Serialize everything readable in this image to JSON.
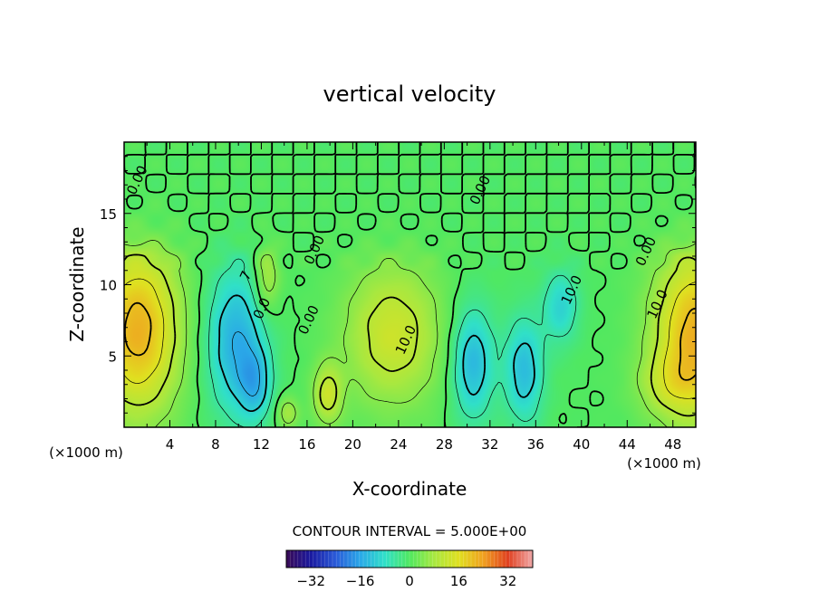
{
  "chart_data": {
    "type": "heatmap",
    "title": "vertical velocity",
    "xlabel": "X-coordinate",
    "ylabel": "Z-coordinate",
    "x_unit_label": "(×1000 m)",
    "x_unit_label_right": "(×1000 m)",
    "xlim": [
      0,
      50
    ],
    "ylim": [
      0,
      20
    ],
    "x_ticks": [
      "4",
      "8",
      "12",
      "16",
      "20",
      "24",
      "28",
      "32",
      "36",
      "40",
      "44",
      "48"
    ],
    "y_ticks": [
      "5",
      "10",
      "15"
    ],
    "contour_interval_text": "CONTOUR INTERVAL = 5.000E+00",
    "contour_interval": 5.0,
    "colorbar": {
      "min": -40,
      "max": 40,
      "ticks": [
        "-32",
        "-16",
        "0",
        "16",
        "32"
      ],
      "colors": [
        "#3a0a55",
        "#1a1aa0",
        "#2a5ad8",
        "#2aa8e8",
        "#30e0c8",
        "#50e860",
        "#a8e840",
        "#e0e020",
        "#f0a020",
        "#e04020",
        "#f0a8a8"
      ]
    },
    "contour_labels": [
      {
        "text": "0.00",
        "x": 1.5,
        "z": 17.2
      },
      {
        "text": "0.00",
        "x": 17.0,
        "z": 12.3
      },
      {
        "text": "0.00",
        "x": 16.5,
        "z": 7.4
      },
      {
        "text": "0.00",
        "x": 31.5,
        "z": 16.5
      },
      {
        "text": "0.00",
        "x": 46.0,
        "z": 12.2
      },
      {
        "text": "10.0",
        "x": 25.0,
        "z": 6.0
      },
      {
        "text": "10.0",
        "x": 39.5,
        "z": 9.5
      },
      {
        "text": "10.0",
        "x": 47.0,
        "z": 8.5
      },
      {
        "text": "7",
        "x": 11.0,
        "z": 10.5
      },
      {
        "text": "0.0",
        "x": 12.4,
        "z": 8.2
      }
    ],
    "features": [
      {
        "sign": "positive",
        "x": 1.2,
        "z": 6.8,
        "peak": 22,
        "sx": 2.6,
        "sz": 4.2
      },
      {
        "sign": "negative",
        "x": 9.8,
        "z": 6.0,
        "peak": -15,
        "sx": 1.8,
        "sz": 3.6
      },
      {
        "sign": "negative",
        "x": 11.5,
        "z": 3.0,
        "peak": -10,
        "sx": 1.0,
        "sz": 1.8
      },
      {
        "sign": "positive",
        "x": 12.5,
        "z": 10.5,
        "peak": 9,
        "sx": 0.8,
        "sz": 1.8
      },
      {
        "sign": "positive",
        "x": 14.3,
        "z": 1.0,
        "peak": 8,
        "sx": 0.7,
        "sz": 0.8
      },
      {
        "sign": "positive",
        "x": 17.8,
        "z": 2.3,
        "peak": 12,
        "sx": 0.9,
        "sz": 1.5
      },
      {
        "sign": "positive",
        "x": 23.5,
        "z": 6.5,
        "peak": 13,
        "sx": 3.0,
        "sz": 3.5
      },
      {
        "sign": "negative",
        "x": 30.5,
        "z": 4.5,
        "peak": -14,
        "sx": 1.3,
        "sz": 2.8
      },
      {
        "sign": "negative",
        "x": 35.0,
        "z": 4.0,
        "peak": -13,
        "sx": 1.2,
        "sz": 2.6
      },
      {
        "sign": "negative",
        "x": 38.2,
        "z": 8.5,
        "peak": -10,
        "sx": 1.1,
        "sz": 1.8
      },
      {
        "sign": "positive",
        "x": 50.0,
        "z": 6.5,
        "peak": 22,
        "sx": 2.6,
        "sz": 4.2
      },
      {
        "sign": "positive",
        "x": 47.5,
        "z": 3.0,
        "peak": 6,
        "sx": 2.0,
        "sz": 1.5
      }
    ]
  }
}
